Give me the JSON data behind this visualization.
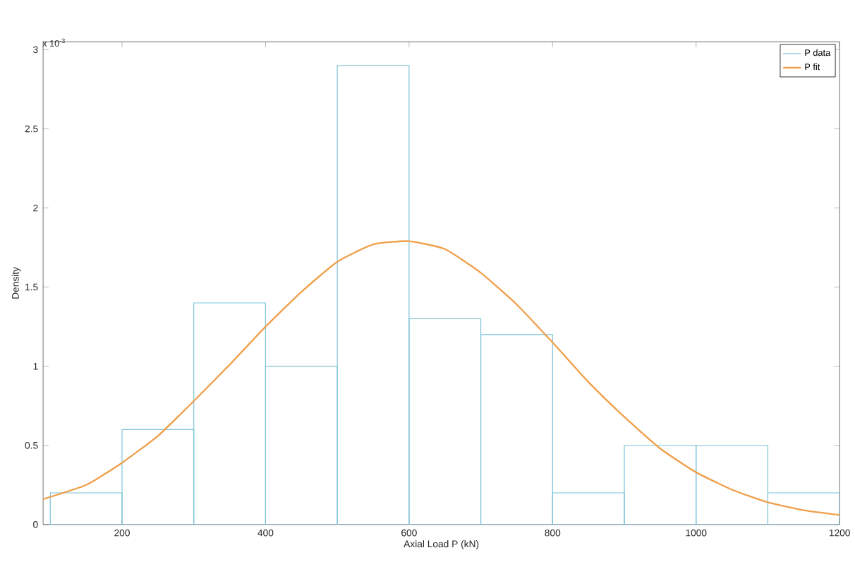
{
  "chart_data": {
    "type": "histogram",
    "xlabel": "Axial Load P (kN)",
    "ylabel": "Density",
    "annotations": [
      "x 10$^{-3}$"
    ],
    "bins": [
      100,
      200,
      300,
      400,
      500,
      600,
      700,
      800,
      900,
      1000,
      1100,
      1200
    ],
    "series": [
      {
        "name": "P data",
        "color": "#7dc3d8",
        "values": [
          0.2,
          0.6,
          1.4,
          1.0,
          2.9,
          1.3,
          1.2,
          0.2,
          0.5,
          0.5,
          0.2
        ]
      },
      {
        "name": "P fit",
        "type": "line",
        "color": "#f0a04b",
        "x": [
          90,
          150,
          200,
          250,
          300,
          350,
          400,
          450,
          500,
          550,
          600,
          650,
          700,
          750,
          800,
          850,
          900,
          950,
          1000,
          1050,
          1100,
          1150,
          1200
        ],
        "values": [
          0.16,
          0.25,
          0.39,
          0.56,
          0.78,
          1.01,
          1.25,
          1.47,
          1.66,
          1.77,
          1.79,
          1.74,
          1.59,
          1.39,
          1.15,
          0.9,
          0.68,
          0.48,
          0.33,
          0.22,
          0.14,
          0.09,
          0.06
        ]
      }
    ],
    "xlim": [
      90,
      1200
    ],
    "ylim": [
      0,
      3.05
    ],
    "xticks": [
      200,
      400,
      600,
      800,
      1000,
      1200
    ],
    "yticks": [
      0,
      0.5,
      1,
      1.5,
      2,
      2.5,
      3
    ],
    "legend": "top right",
    "grid": false
  }
}
